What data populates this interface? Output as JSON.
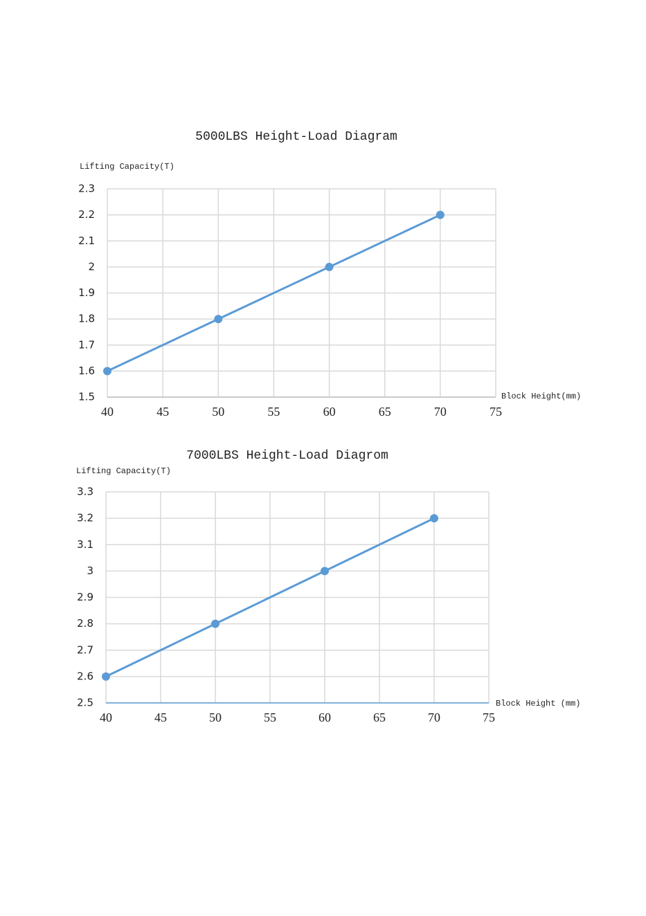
{
  "chart_data": [
    {
      "type": "line",
      "title": "5000LBS Height-Load  Diagram",
      "y_label": "Lifting Capacity(T)",
      "x_label": "Block  Height(mm)",
      "x": [
        40,
        50,
        60,
        70
      ],
      "values": [
        1.6,
        1.8,
        2.0,
        2.2
      ],
      "color": "#5b9bd5",
      "xlim": [
        40,
        75
      ],
      "xticks": [
        40,
        45,
        50,
        55,
        60,
        65,
        70,
        75
      ],
      "ylim": [
        1.5,
        2.3
      ],
      "yticks": [
        1.5,
        1.6,
        1.7,
        1.8,
        1.9,
        2,
        2.1,
        2.2,
        2.3
      ],
      "grid": true
    },
    {
      "type": "line",
      "title": "7000LBS Height-Load Diagrom",
      "y_label": "Lifting Capacity(T)",
      "x_label": "Block Height (mm)",
      "x": [
        40,
        50,
        60,
        70
      ],
      "values": [
        2.6,
        2.8,
        3.0,
        3.2
      ],
      "color": "#5b9bd5",
      "xlim": [
        40,
        75
      ],
      "xticks": [
        40,
        45,
        50,
        55,
        60,
        65,
        70,
        75
      ],
      "ylim": [
        2.5,
        3.3
      ],
      "yticks": [
        2.5,
        2.6,
        2.7,
        2.8,
        2.9,
        3,
        3.1,
        3.2,
        3.3
      ],
      "grid": true
    }
  ]
}
